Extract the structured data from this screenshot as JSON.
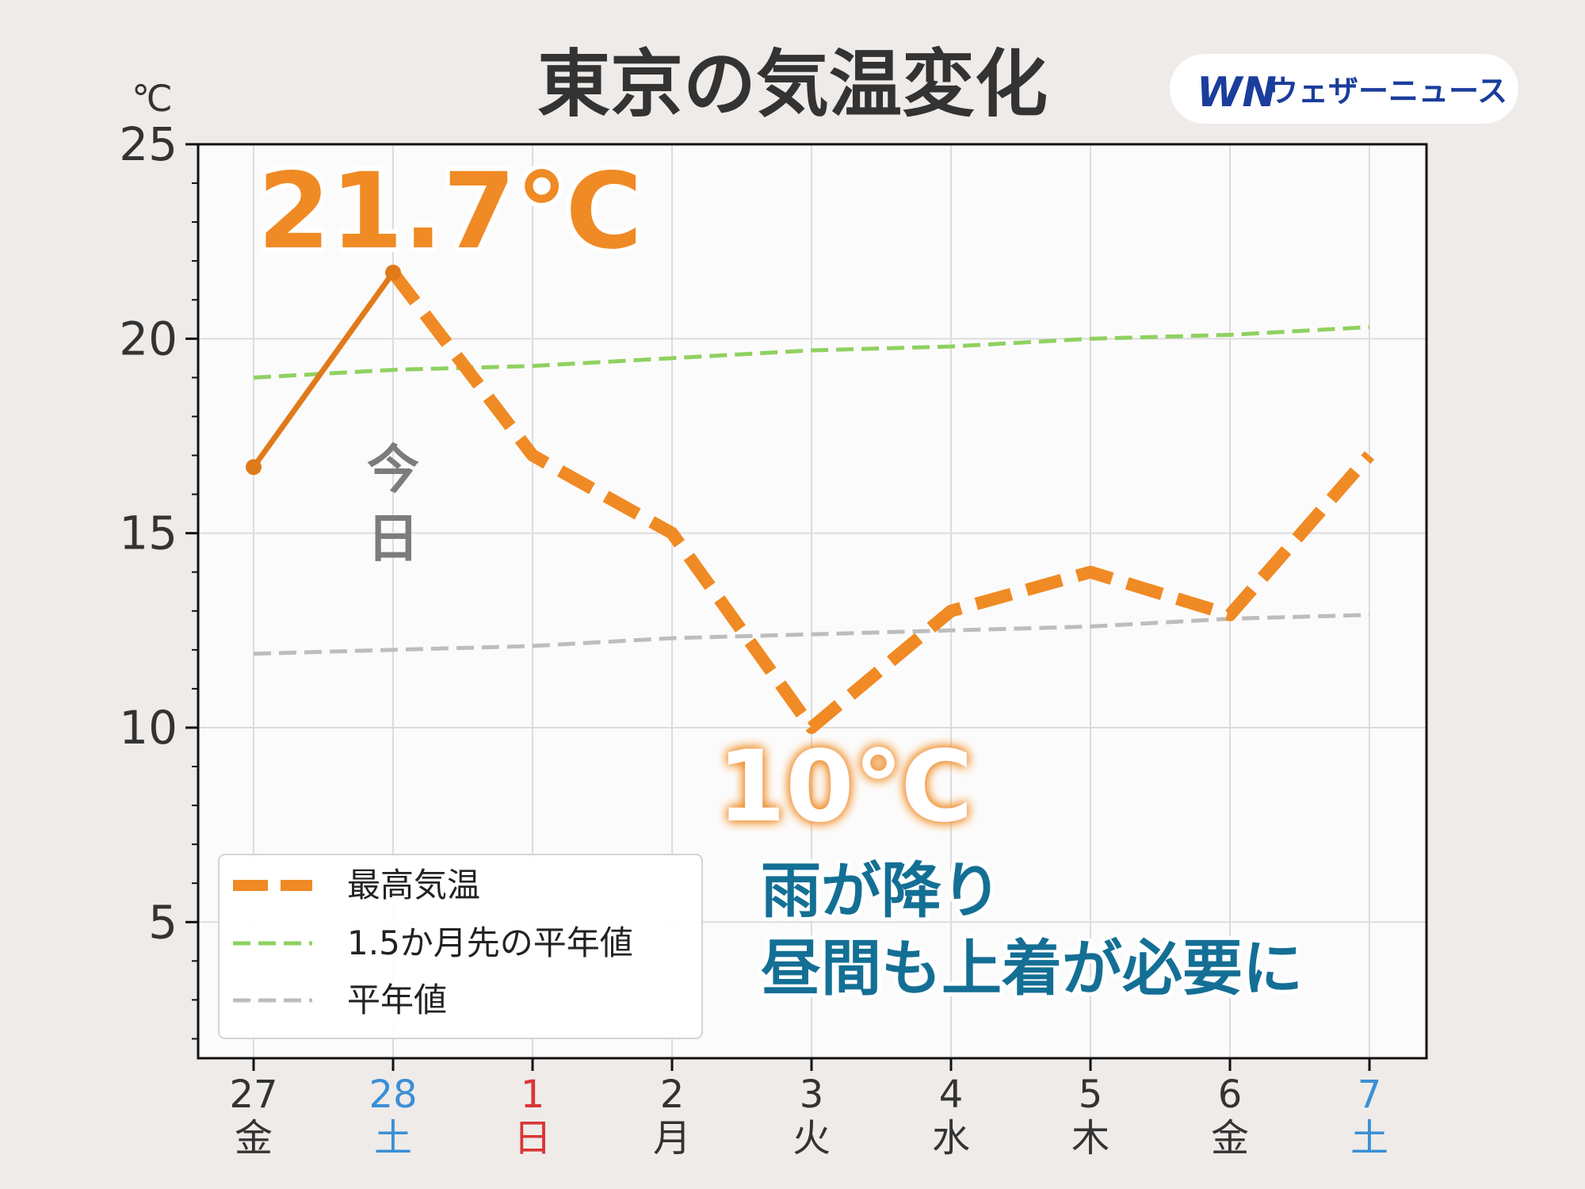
{
  "chart_data": {
    "type": "line",
    "title": "東京の気温変化",
    "unit": "℃",
    "brand": {
      "mark": "WN",
      "name": "ウェザーニュース"
    },
    "yaxis": {
      "ylim": [
        1.5,
        25
      ],
      "ticks": [
        5,
        10,
        15,
        20,
        25
      ]
    },
    "categories": [
      {
        "day": "27",
        "weekday": "金",
        "color": "#333333"
      },
      {
        "day": "28",
        "weekday": "土",
        "color": "#3a8fd6"
      },
      {
        "day": "1",
        "weekday": "日",
        "color": "#d93636"
      },
      {
        "day": "2",
        "weekday": "月",
        "color": "#333333"
      },
      {
        "day": "3",
        "weekday": "火",
        "color": "#333333"
      },
      {
        "day": "4",
        "weekday": "水",
        "color": "#333333"
      },
      {
        "day": "5",
        "weekday": "木",
        "color": "#333333"
      },
      {
        "day": "6",
        "weekday": "金",
        "color": "#333333"
      },
      {
        "day": "7",
        "weekday": "土",
        "color": "#3a8fd6"
      }
    ],
    "series": [
      {
        "name": "最高気温",
        "color": "#f08a24",
        "observed_color": "#e07a1a",
        "observed_until_index": 1,
        "values": [
          16.7,
          21.7,
          17.0,
          15.0,
          10.0,
          13.0,
          14.0,
          12.9,
          17.0
        ]
      },
      {
        "name": "1.5か月先の平年値",
        "color": "#8fd160",
        "values": [
          19.0,
          19.2,
          19.3,
          19.5,
          19.7,
          19.8,
          20.0,
          20.1,
          20.3
        ]
      },
      {
        "name": "平年値",
        "color": "#bdbdbd",
        "values": [
          11.9,
          12.0,
          12.1,
          12.3,
          12.4,
          12.5,
          12.6,
          12.8,
          12.9
        ]
      }
    ],
    "annotations": {
      "max_label": "21.7℃",
      "min_label": "10℃",
      "today_label_1": "今",
      "today_label_2": "日",
      "message_line1": "雨が降り",
      "message_line2": "昼間も上着が必要に"
    },
    "legend_position": "lower-left",
    "grid": true
  }
}
